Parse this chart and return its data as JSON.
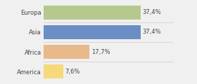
{
  "categories": [
    "Europa",
    "Asia",
    "Africa",
    "America"
  ],
  "values": [
    37.4,
    37.4,
    17.7,
    7.6
  ],
  "labels": [
    "37,4%",
    "37,4%",
    "17,7%",
    "7,6%"
  ],
  "bar_colors": [
    "#b5c98e",
    "#6b8fc4",
    "#e8b98a",
    "#f5d97a"
  ],
  "background_color": "#f0f0f0",
  "xlim": [
    0,
    50
  ],
  "bar_height": 0.72,
  "label_fontsize": 6.0,
  "tick_fontsize": 6.0,
  "figsize": [
    2.8,
    1.2
  ],
  "dpi": 100
}
